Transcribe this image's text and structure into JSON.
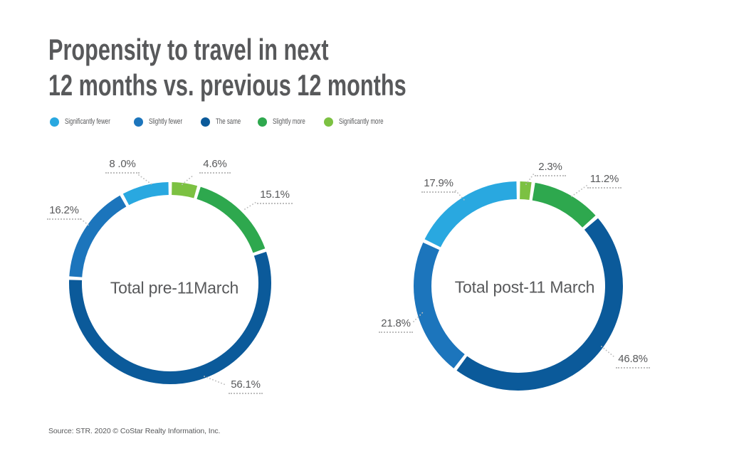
{
  "title": {
    "line1": "Propensity to travel in next",
    "line2": "12 months vs. previous 12 months",
    "color": "#58595B"
  },
  "legend": [
    {
      "label": "Significantly fewer",
      "color": "#29A8E0"
    },
    {
      "label": "Slightly fewer",
      "color": "#1C75BC"
    },
    {
      "label": "The same",
      "color": "#0B5A9A"
    },
    {
      "label": "Slightly more",
      "color": "#2EA84E"
    },
    {
      "label": "Significantly more",
      "color": "#7CC142"
    }
  ],
  "source": "Source: STR. 2020 © CoStar Realty Information, Inc.",
  "chart_data": [
    {
      "type": "pie",
      "subtype": "donut",
      "title": "Total pre-11March",
      "categories": [
        "Significantly fewer",
        "Slightly fewer",
        "The same",
        "Slightly more",
        "Significantly more"
      ],
      "values": [
        8.0,
        16.2,
        56.1,
        15.1,
        4.6
      ],
      "value_labels": [
        "8 .0%",
        "16.2%",
        "56.1%",
        "15.1%",
        "4.6%"
      ],
      "units": "%",
      "order_clockwise_from_top": [
        "Significantly more",
        "Slightly more",
        "The same",
        "Slightly fewer",
        "Significantly fewer"
      ],
      "labels_position": "outside-with-dotted-leaders",
      "legend_position": "top-left"
    },
    {
      "type": "pie",
      "subtype": "donut",
      "title": "Total post-11 March",
      "categories": [
        "Significantly fewer",
        "Slightly fewer",
        "The same",
        "Slightly more",
        "Significantly more"
      ],
      "values": [
        17.9,
        21.8,
        46.8,
        11.2,
        2.3
      ],
      "value_labels": [
        "17.9%",
        "21.8%",
        "46.8%",
        "11.2%",
        "2.3%"
      ],
      "units": "%",
      "order_clockwise_from_top": [
        "Significantly more",
        "Slightly more",
        "The same",
        "Slightly fewer",
        "Significantly fewer"
      ],
      "labels_position": "outside-with-dotted-leaders",
      "legend_position": "top-left"
    }
  ]
}
